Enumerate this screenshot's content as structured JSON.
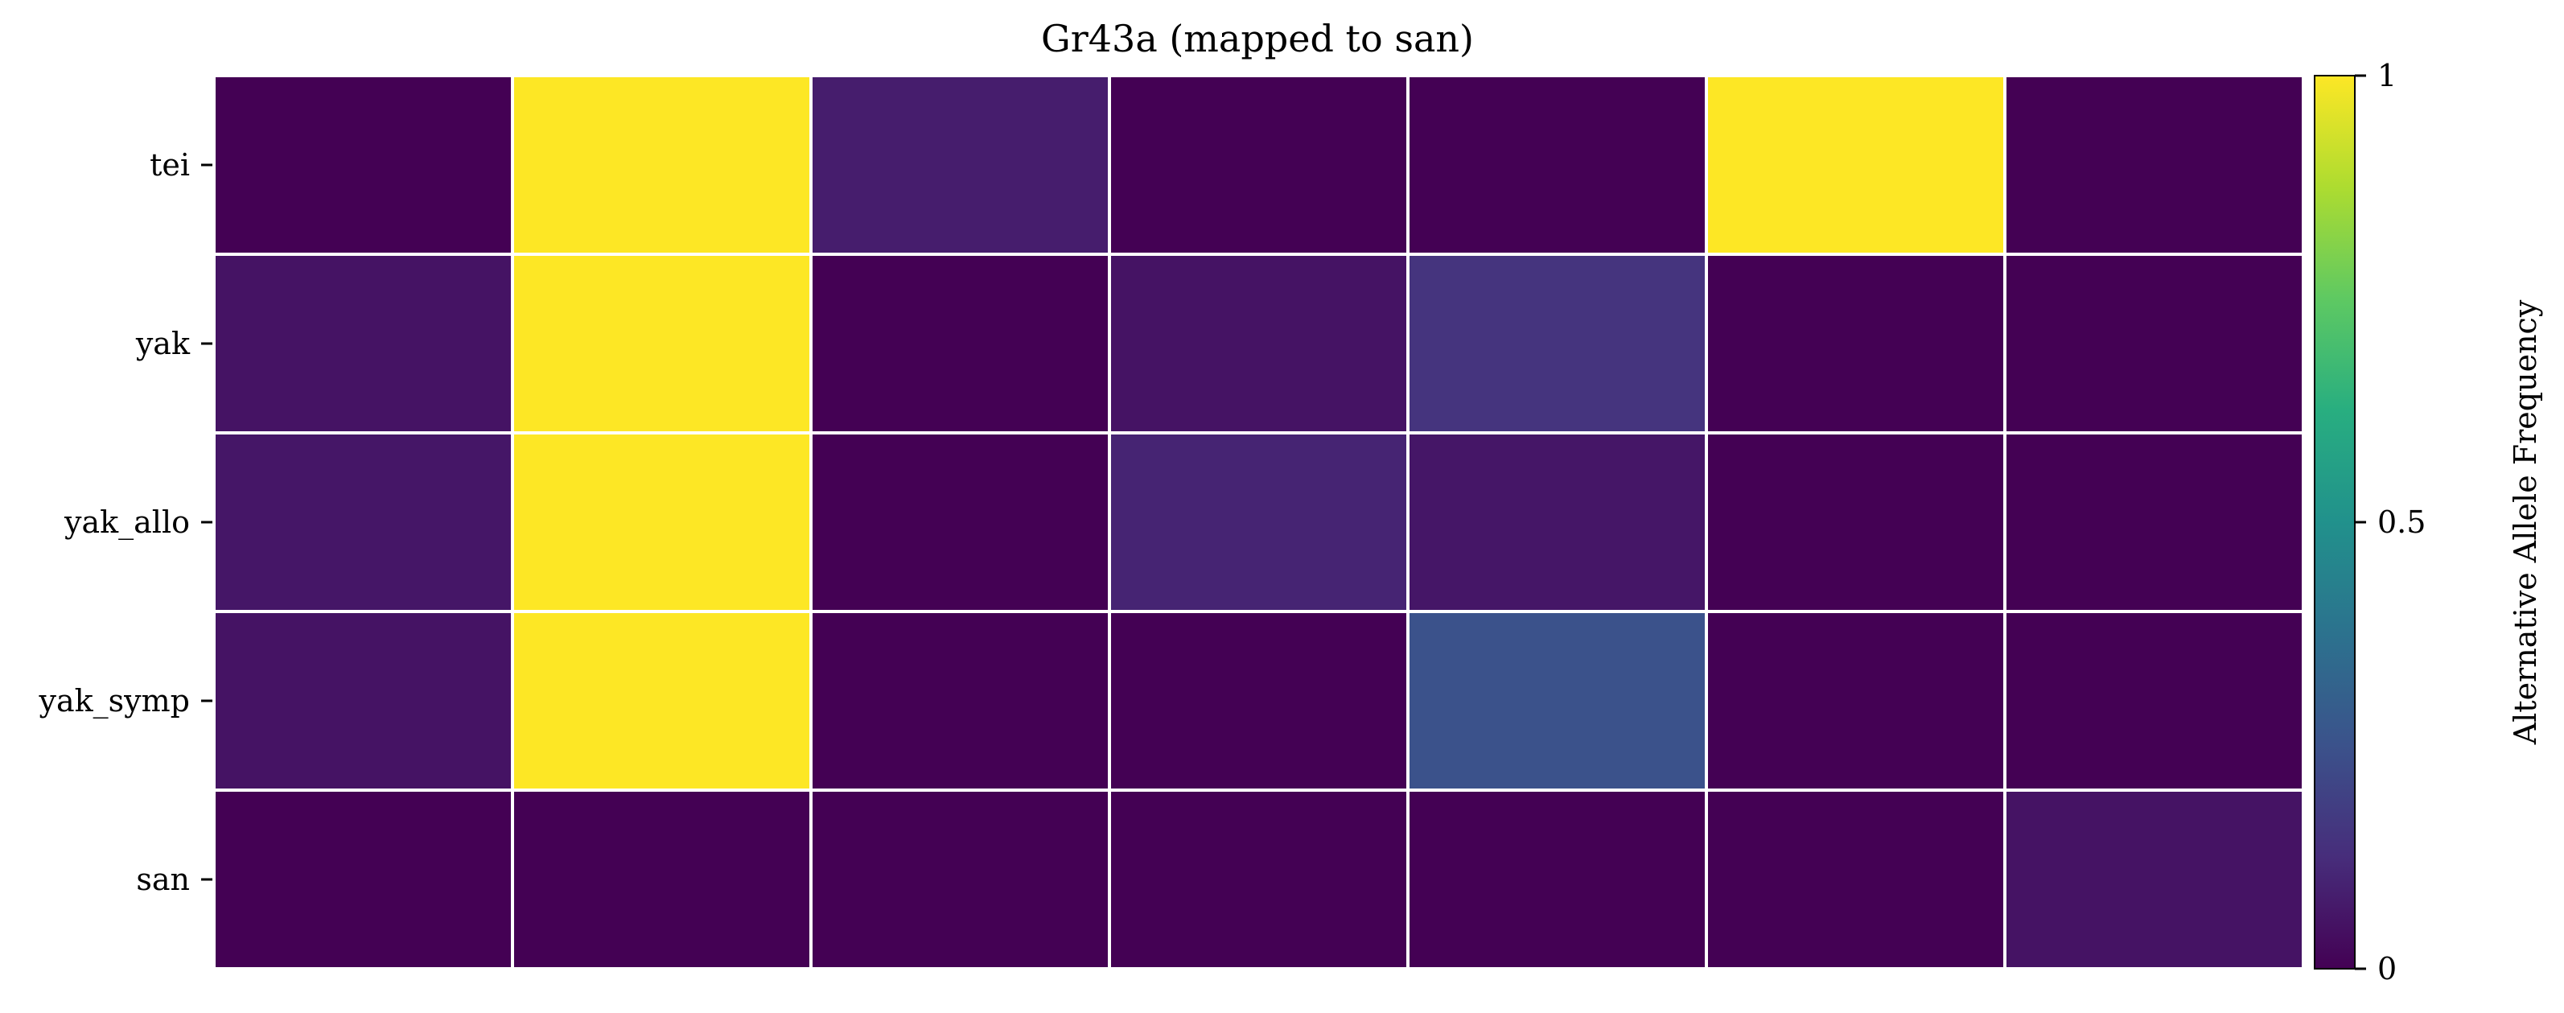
{
  "chart_data": {
    "type": "heatmap",
    "title": "Gr43a (mapped to san)",
    "rows": [
      "tei",
      "yak",
      "yak_allo",
      "yak_symp",
      "san"
    ],
    "columns": [
      "",
      "",
      "",
      "",
      "",
      "",
      ""
    ],
    "values": [
      [
        0.0,
        1.0,
        0.08,
        0.0,
        0.0,
        1.0,
        0.0
      ],
      [
        0.05,
        1.0,
        0.0,
        0.05,
        0.15,
        0.0,
        0.0
      ],
      [
        0.06,
        1.0,
        0.0,
        0.1,
        0.06,
        0.0,
        0.0
      ],
      [
        0.05,
        1.0,
        0.0,
        0.0,
        0.25,
        0.0,
        0.0
      ],
      [
        0.0,
        0.0,
        0.0,
        0.0,
        0.0,
        0.0,
        0.05
      ]
    ],
    "colormap": "viridis",
    "vmin": 0,
    "vmax": 1,
    "colorbar": {
      "label": "Alternative Allele Frequency",
      "ticks": [
        0,
        0.5,
        1
      ],
      "tick_labels": [
        "0",
        "0.5",
        "1"
      ]
    },
    "cell_border_color": "#ffffff"
  }
}
